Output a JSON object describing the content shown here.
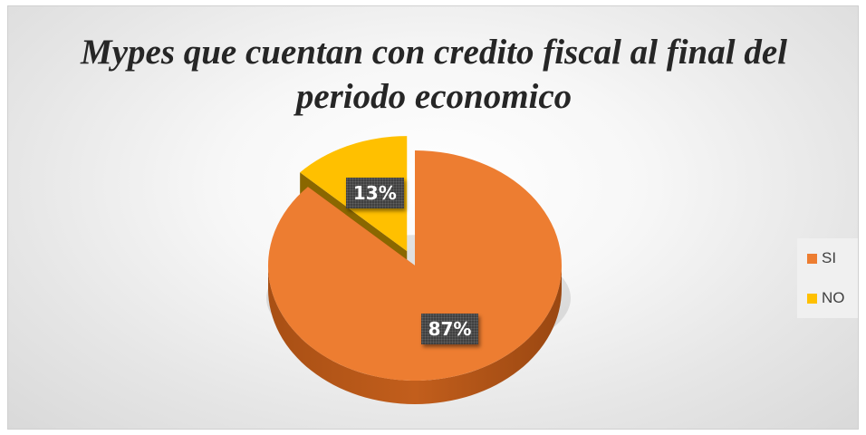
{
  "chart_data": {
    "type": "pie",
    "title": [
      "Mypes que cuentan con credito fiscal al final del",
      "periodo economico"
    ],
    "categories": [
      "SI",
      "NO"
    ],
    "values": [
      87,
      13
    ],
    "data_labels": [
      "87%",
      "13%"
    ],
    "colors": [
      "#ED7D31",
      "#FFC000"
    ],
    "legend_position": "right",
    "style": "3d-exploded"
  }
}
